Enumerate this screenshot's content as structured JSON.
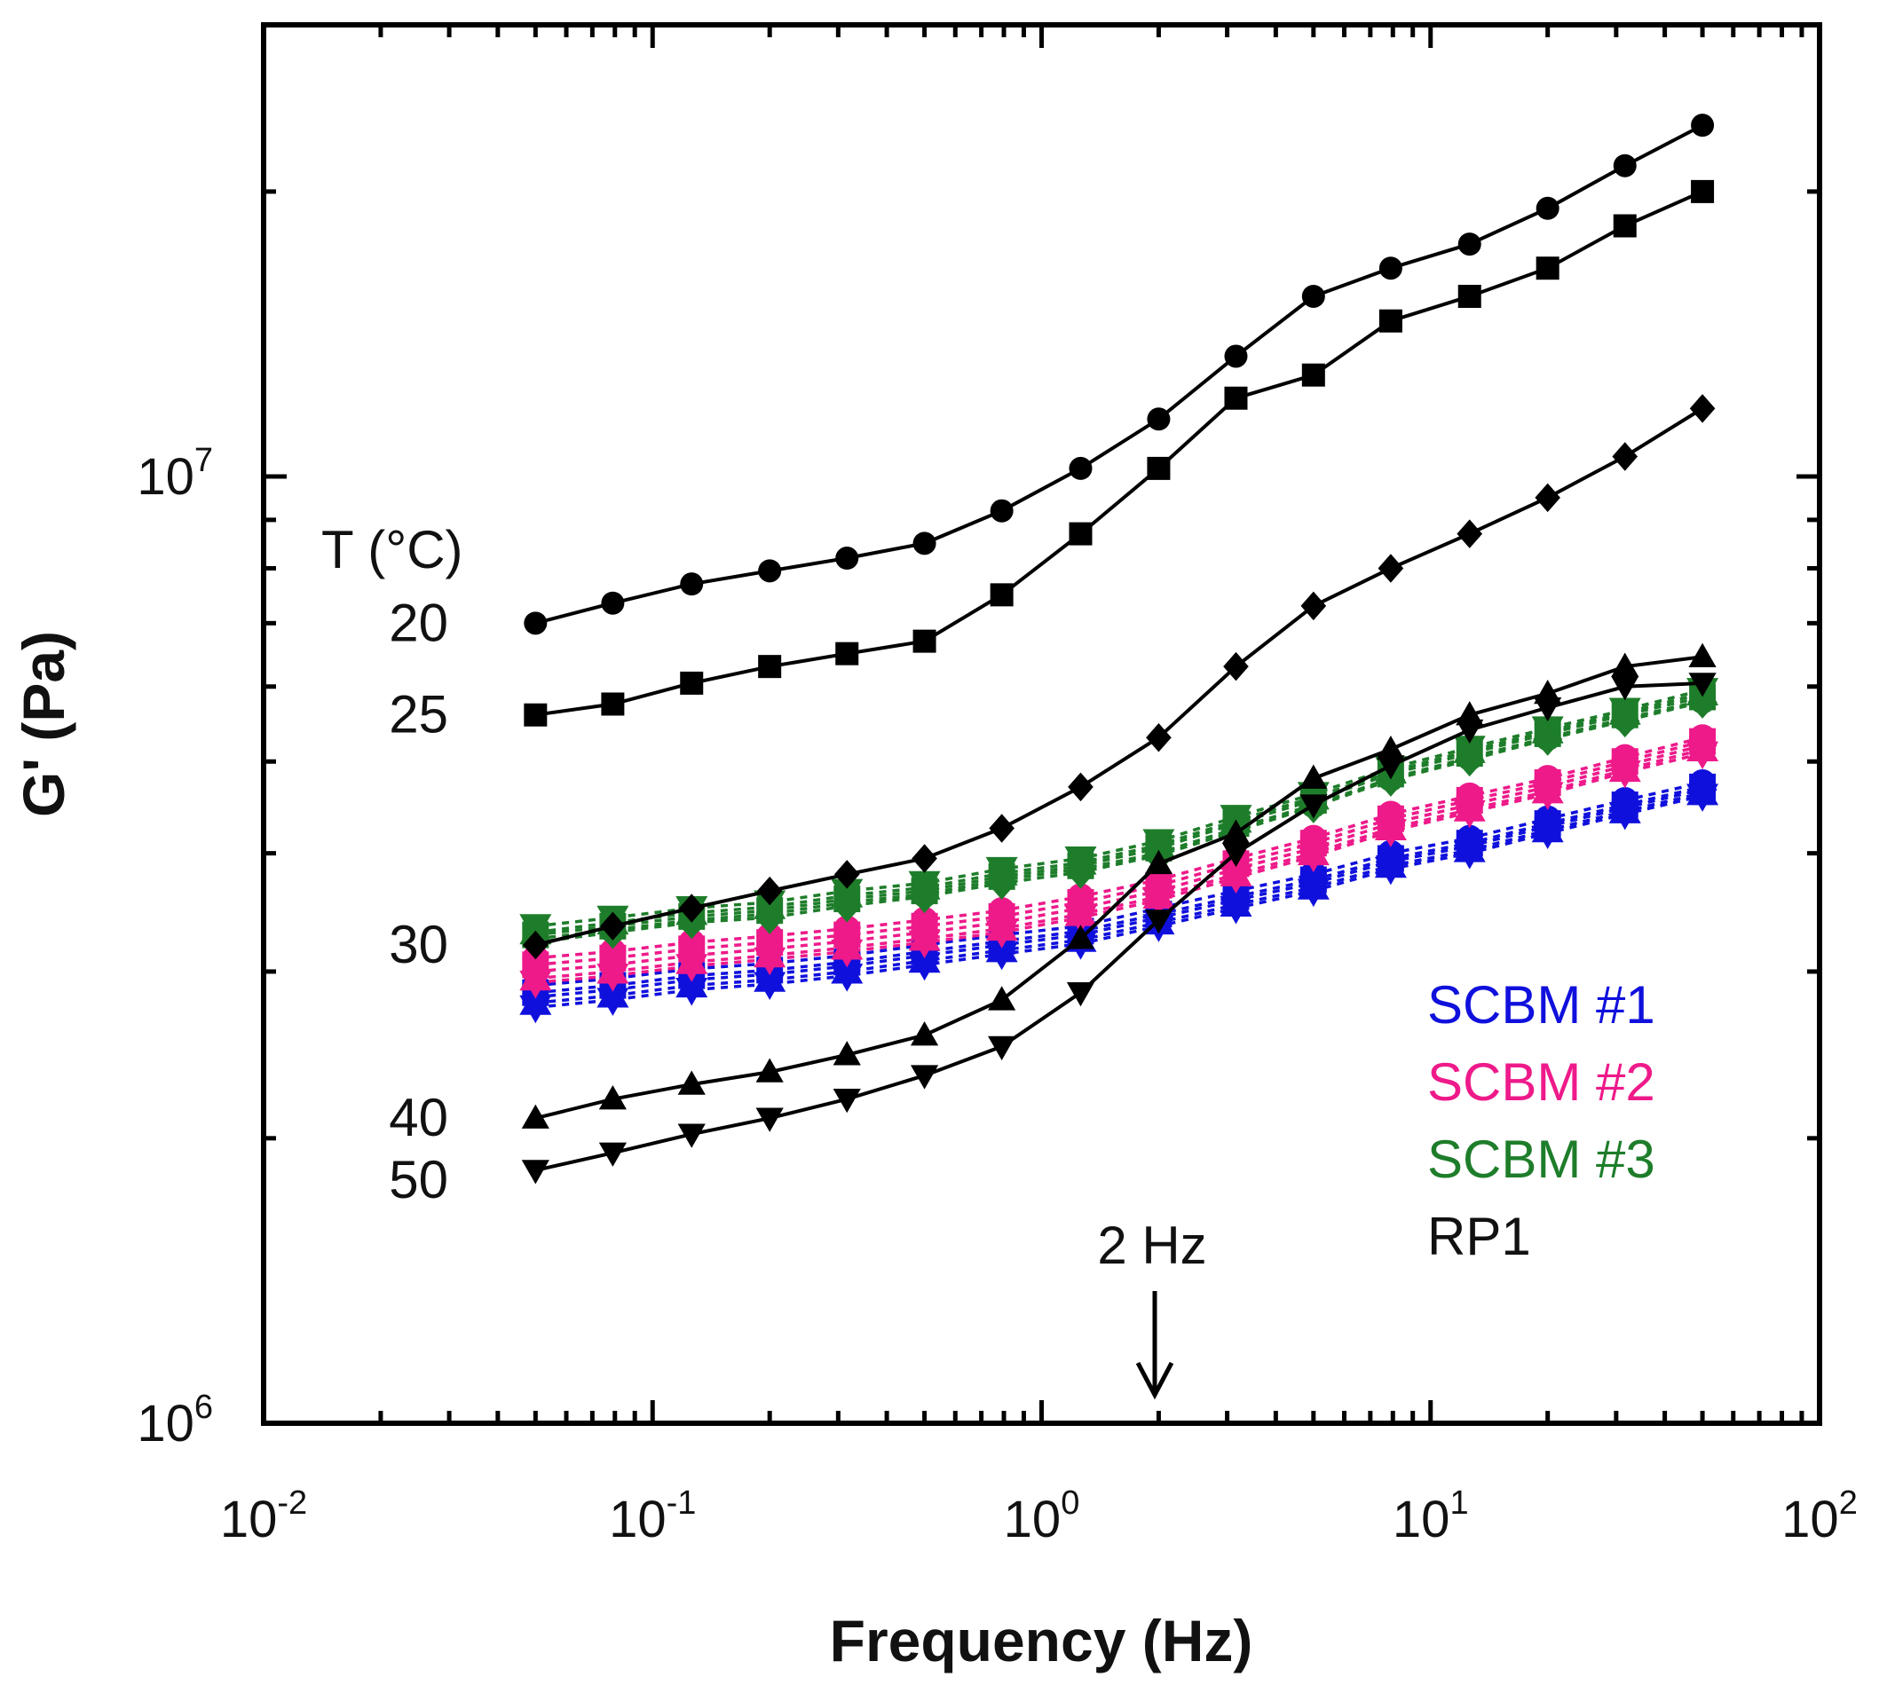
{
  "chart_data": {
    "type": "scatter",
    "title": "",
    "xlabel": "Frequency (Hz)",
    "ylabel": "G' (Pa)",
    "xscale": "log",
    "yscale": "log",
    "xlim": [
      0.01,
      100
    ],
    "ylim": [
      1000000,
      30000000
    ],
    "x_ticks": [
      {
        "base": "10",
        "exp": "-2",
        "value": 0.01
      },
      {
        "base": "10",
        "exp": "-1",
        "value": 0.1
      },
      {
        "base": "10",
        "exp": "0",
        "value": 1
      },
      {
        "base": "10",
        "exp": "1",
        "value": 10
      },
      {
        "base": "10",
        "exp": "2",
        "value": 100
      }
    ],
    "y_ticks": [
      {
        "base": "10",
        "exp": "6",
        "value": 1000000
      },
      {
        "base": "10",
        "exp": "7",
        "value": 10000000
      }
    ],
    "x": [
      0.05,
      0.079,
      0.126,
      0.2,
      0.316,
      0.5,
      0.79,
      1.26,
      2.0,
      3.16,
      5.0,
      7.9,
      12.6,
      20,
      31.6,
      50
    ],
    "temperature_header": "T (°C)",
    "temperature_labels": [
      "20",
      "25",
      "30",
      "40",
      "50"
    ],
    "annotation": "2 Hz",
    "annotation_x": 2.0,
    "legend": [
      {
        "label": "SCBM #1",
        "color": "#1010dd"
      },
      {
        "label": "SCBM #2",
        "color": "#ee1a8a"
      },
      {
        "label": "SCBM #3",
        "color": "#1e7d2a"
      },
      {
        "label": "RP1",
        "color": "#111111"
      }
    ],
    "series": [
      {
        "name": "RP1 20°C",
        "group": "RP1",
        "temperature": "20",
        "marker": "circle",
        "color": "#000000",
        "values": [
          7000000,
          7350000,
          7700000,
          7950000,
          8200000,
          8500000,
          9200000,
          10200000,
          11500000,
          13400000,
          15500000,
          16600000,
          17600000,
          19200000,
          21300000,
          23500000
        ]
      },
      {
        "name": "RP1 25°C",
        "group": "RP1",
        "temperature": "25",
        "marker": "square",
        "color": "#000000",
        "values": [
          5600000,
          5750000,
          6050000,
          6300000,
          6500000,
          6700000,
          7500000,
          8700000,
          10200000,
          12100000,
          12800000,
          14600000,
          15500000,
          16600000,
          18400000,
          20000000
        ]
      },
      {
        "name": "RP1 30°C",
        "group": "RP1",
        "temperature": "30",
        "marker": "diamond",
        "color": "#000000",
        "values": [
          3200000,
          3350000,
          3500000,
          3650000,
          3800000,
          3950000,
          4250000,
          4700000,
          5300000,
          6300000,
          7300000,
          8000000,
          8700000,
          9500000,
          10500000,
          11800000
        ]
      },
      {
        "name": "RP1 40°C",
        "group": "RP1",
        "temperature": "40",
        "marker": "triangle-up",
        "color": "#000000",
        "values": [
          2100000,
          2200000,
          2280000,
          2350000,
          2450000,
          2570000,
          2800000,
          3250000,
          3900000,
          4200000,
          4800000,
          5150000,
          5600000,
          5900000,
          6300000,
          6450000
        ]
      },
      {
        "name": "RP1 50°C",
        "group": "RP1",
        "temperature": "50",
        "marker": "triangle-down",
        "color": "#000000",
        "values": [
          1850000,
          1930000,
          2020000,
          2100000,
          2200000,
          2330000,
          2500000,
          2850000,
          3400000,
          4000000,
          4500000,
          4950000,
          5400000,
          5700000,
          6000000,
          6050000
        ]
      },
      {
        "name": "SCBM #1 20°C",
        "group": "SCBM #1",
        "temperature": "20",
        "marker": "circle",
        "color": "#1010dd",
        "values": [
          2900000,
          2950000,
          3020000,
          3060000,
          3120000,
          3200000,
          3280000,
          3350000,
          3500000,
          3650000,
          3800000,
          4000000,
          4150000,
          4350000,
          4550000,
          4750000
        ]
      },
      {
        "name": "SCBM #1 25°C",
        "group": "SCBM #1",
        "temperature": "25",
        "marker": "square",
        "color": "#1010dd",
        "values": [
          2850000,
          2900000,
          2970000,
          3010000,
          3070000,
          3150000,
          3230000,
          3310000,
          3450000,
          3600000,
          3750000,
          3950000,
          4100000,
          4300000,
          4500000,
          4700000
        ]
      },
      {
        "name": "SCBM #1 30°C",
        "group": "SCBM #1",
        "temperature": "30",
        "marker": "diamond",
        "color": "#1010dd",
        "values": [
          2820000,
          2870000,
          2940000,
          2980000,
          3040000,
          3120000,
          3200000,
          3280000,
          3420000,
          3570000,
          3720000,
          3920000,
          4070000,
          4270000,
          4470000,
          4670000
        ]
      },
      {
        "name": "SCBM #1 40°C",
        "group": "SCBM #1",
        "temperature": "40",
        "marker": "triangle-up",
        "color": "#1010dd",
        "values": [
          2780000,
          2830000,
          2900000,
          2940000,
          3000000,
          3080000,
          3160000,
          3240000,
          3380000,
          3530000,
          3680000,
          3880000,
          4030000,
          4230000,
          4430000,
          4630000
        ]
      },
      {
        "name": "SCBM #1 50°C",
        "group": "SCBM #1",
        "temperature": "50",
        "marker": "triangle-down",
        "color": "#1010dd",
        "values": [
          2750000,
          2800000,
          2870000,
          2910000,
          2970000,
          3050000,
          3130000,
          3210000,
          3350000,
          3500000,
          3650000,
          3850000,
          4000000,
          4200000,
          4400000,
          4600000
        ]
      },
      {
        "name": "SCBM #2 20°C",
        "group": "SCBM #2",
        "temperature": "20",
        "marker": "circle",
        "color": "#ee1a8a",
        "values": [
          3100000,
          3150000,
          3220000,
          3270000,
          3330000,
          3400000,
          3480000,
          3600000,
          3750000,
          3950000,
          4150000,
          4400000,
          4600000,
          4800000,
          5050000,
          5300000
        ]
      },
      {
        "name": "SCBM #2 25°C",
        "group": "SCBM #2",
        "temperature": "25",
        "marker": "square",
        "color": "#ee1a8a",
        "values": [
          3050000,
          3100000,
          3170000,
          3220000,
          3280000,
          3350000,
          3430000,
          3550000,
          3700000,
          3900000,
          4100000,
          4350000,
          4550000,
          4750000,
          5000000,
          5250000
        ]
      },
      {
        "name": "SCBM #2 30°C",
        "group": "SCBM #2",
        "temperature": "30",
        "marker": "diamond",
        "color": "#ee1a8a",
        "values": [
          3000000,
          3050000,
          3120000,
          3170000,
          3230000,
          3300000,
          3380000,
          3500000,
          3650000,
          3850000,
          4050000,
          4300000,
          4500000,
          4700000,
          4950000,
          5200000
        ]
      },
      {
        "name": "SCBM #2 40°C",
        "group": "SCBM #2",
        "temperature": "40",
        "marker": "triangle-up",
        "color": "#ee1a8a",
        "values": [
          2950000,
          3000000,
          3070000,
          3120000,
          3180000,
          3250000,
          3330000,
          3450000,
          3600000,
          3800000,
          4000000,
          4250000,
          4450000,
          4650000,
          4900000,
          5150000
        ]
      },
      {
        "name": "SCBM #2 50°C",
        "group": "SCBM #2",
        "temperature": "50",
        "marker": "triangle-down",
        "color": "#ee1a8a",
        "values": [
          2920000,
          2970000,
          3040000,
          3090000,
          3150000,
          3220000,
          3300000,
          3420000,
          3570000,
          3770000,
          3970000,
          4220000,
          4420000,
          4620000,
          4870000,
          5100000
        ]
      },
      {
        "name": "SCBM #3 20°C",
        "group": "SCBM #3",
        "temperature": "20",
        "marker": "circle",
        "color": "#1e7d2a",
        "values": [
          3250000,
          3320000,
          3400000,
          3450000,
          3550000,
          3620000,
          3750000,
          3850000,
          4000000,
          4250000,
          4500000,
          4800000,
          5050000,
          5300000,
          5550000,
          5800000
        ]
      },
      {
        "name": "SCBM #3 25°C",
        "group": "SCBM #3",
        "temperature": "25",
        "marker": "square",
        "color": "#1e7d2a",
        "values": [
          3280000,
          3350000,
          3430000,
          3480000,
          3580000,
          3650000,
          3780000,
          3880000,
          4050000,
          4300000,
          4550000,
          4850000,
          5100000,
          5350000,
          5600000,
          5850000
        ]
      },
      {
        "name": "SCBM #3 30°C",
        "group": "SCBM #3",
        "temperature": "30",
        "marker": "diamond",
        "color": "#1e7d2a",
        "values": [
          3220000,
          3300000,
          3380000,
          3420000,
          3520000,
          3600000,
          3720000,
          3820000,
          3980000,
          4220000,
          4480000,
          4780000,
          5020000,
          5280000,
          5520000,
          5780000
        ]
      },
      {
        "name": "SCBM #3 40°C",
        "group": "SCBM #3",
        "temperature": "40",
        "marker": "triangle-up",
        "color": "#1e7d2a",
        "values": [
          3300000,
          3380000,
          3460000,
          3510000,
          3610000,
          3680000,
          3810000,
          3910000,
          4080000,
          4330000,
          4580000,
          4880000,
          5130000,
          5380000,
          5630000,
          5900000
        ]
      },
      {
        "name": "SCBM #3 50°C",
        "group": "SCBM #3",
        "temperature": "50",
        "marker": "triangle-down",
        "color": "#1e7d2a",
        "values": [
          3350000,
          3420000,
          3500000,
          3550000,
          3650000,
          3720000,
          3850000,
          3950000,
          4120000,
          4370000,
          4620000,
          4920000,
          5170000,
          5420000,
          5670000,
          5950000
        ]
      }
    ]
  }
}
